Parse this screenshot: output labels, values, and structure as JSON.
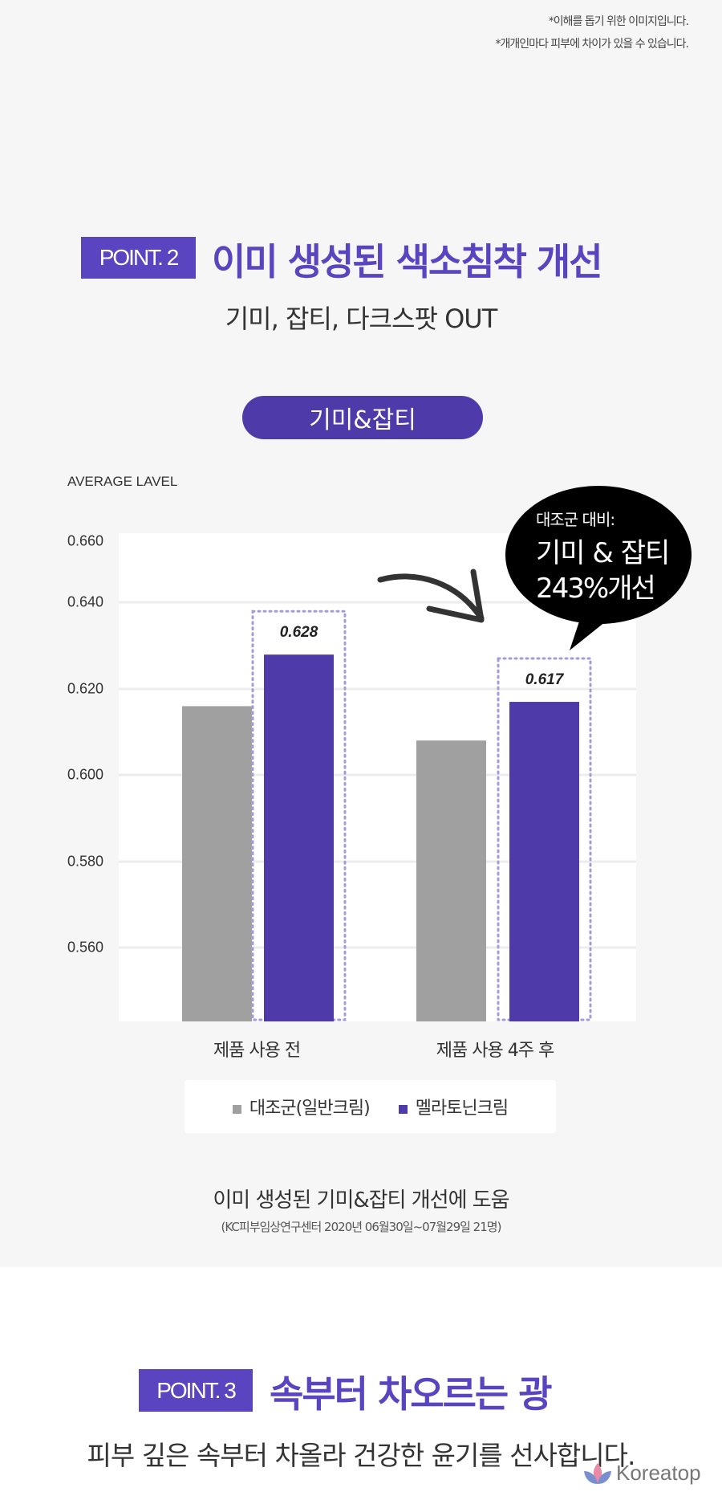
{
  "notes": [
    "*이해를 돕기 위한 이미지입니다.",
    "*개개인마다 피부에 차이가 있을 수 있습니다."
  ],
  "point2": {
    "badge": "POINT. 2",
    "title": "이미 생성된 색소침착 개선",
    "subtitle": "기미, 잡티, 다크스팟 OUT",
    "pill": "기미&잡티"
  },
  "callout": {
    "line1": "대조군 대비:",
    "line2": "기미 & 잡티",
    "line3": "243%개선"
  },
  "chart_data": {
    "type": "bar",
    "ylabel": "AVERAGE LAVEL",
    "categories": [
      "제품 사용 전",
      "제품 사용 4주 후"
    ],
    "yticks": [
      "0.660",
      "0.640",
      "0.620",
      "0.600",
      "0.580",
      "0.560"
    ],
    "ylim": [
      0.545,
      0.66
    ],
    "grid": true,
    "legend_position": "bottom",
    "series": [
      {
        "name": "대조군(일반크림)",
        "color": "#a0a0a0",
        "values": [
          0.616,
          0.608
        ]
      },
      {
        "name": "멜라토닌크림",
        "color": "#4e3aa8",
        "values": [
          0.628,
          0.617
        ],
        "labels": [
          "0.628",
          "0.617"
        ]
      }
    ]
  },
  "caption": {
    "main": "이미 생성된 기미&잡티 개선에 도움",
    "source": "(KC피부임상연구센터 2020년 06월30일~07월29일 21명)"
  },
  "point3": {
    "badge": "POINT. 3",
    "title": "속부터 차오르는 광",
    "subtitle": "피부 깊은 속부터 차올라 건강한 윤기를 선사합니다."
  },
  "watermark": {
    "text": "Koreatop"
  }
}
